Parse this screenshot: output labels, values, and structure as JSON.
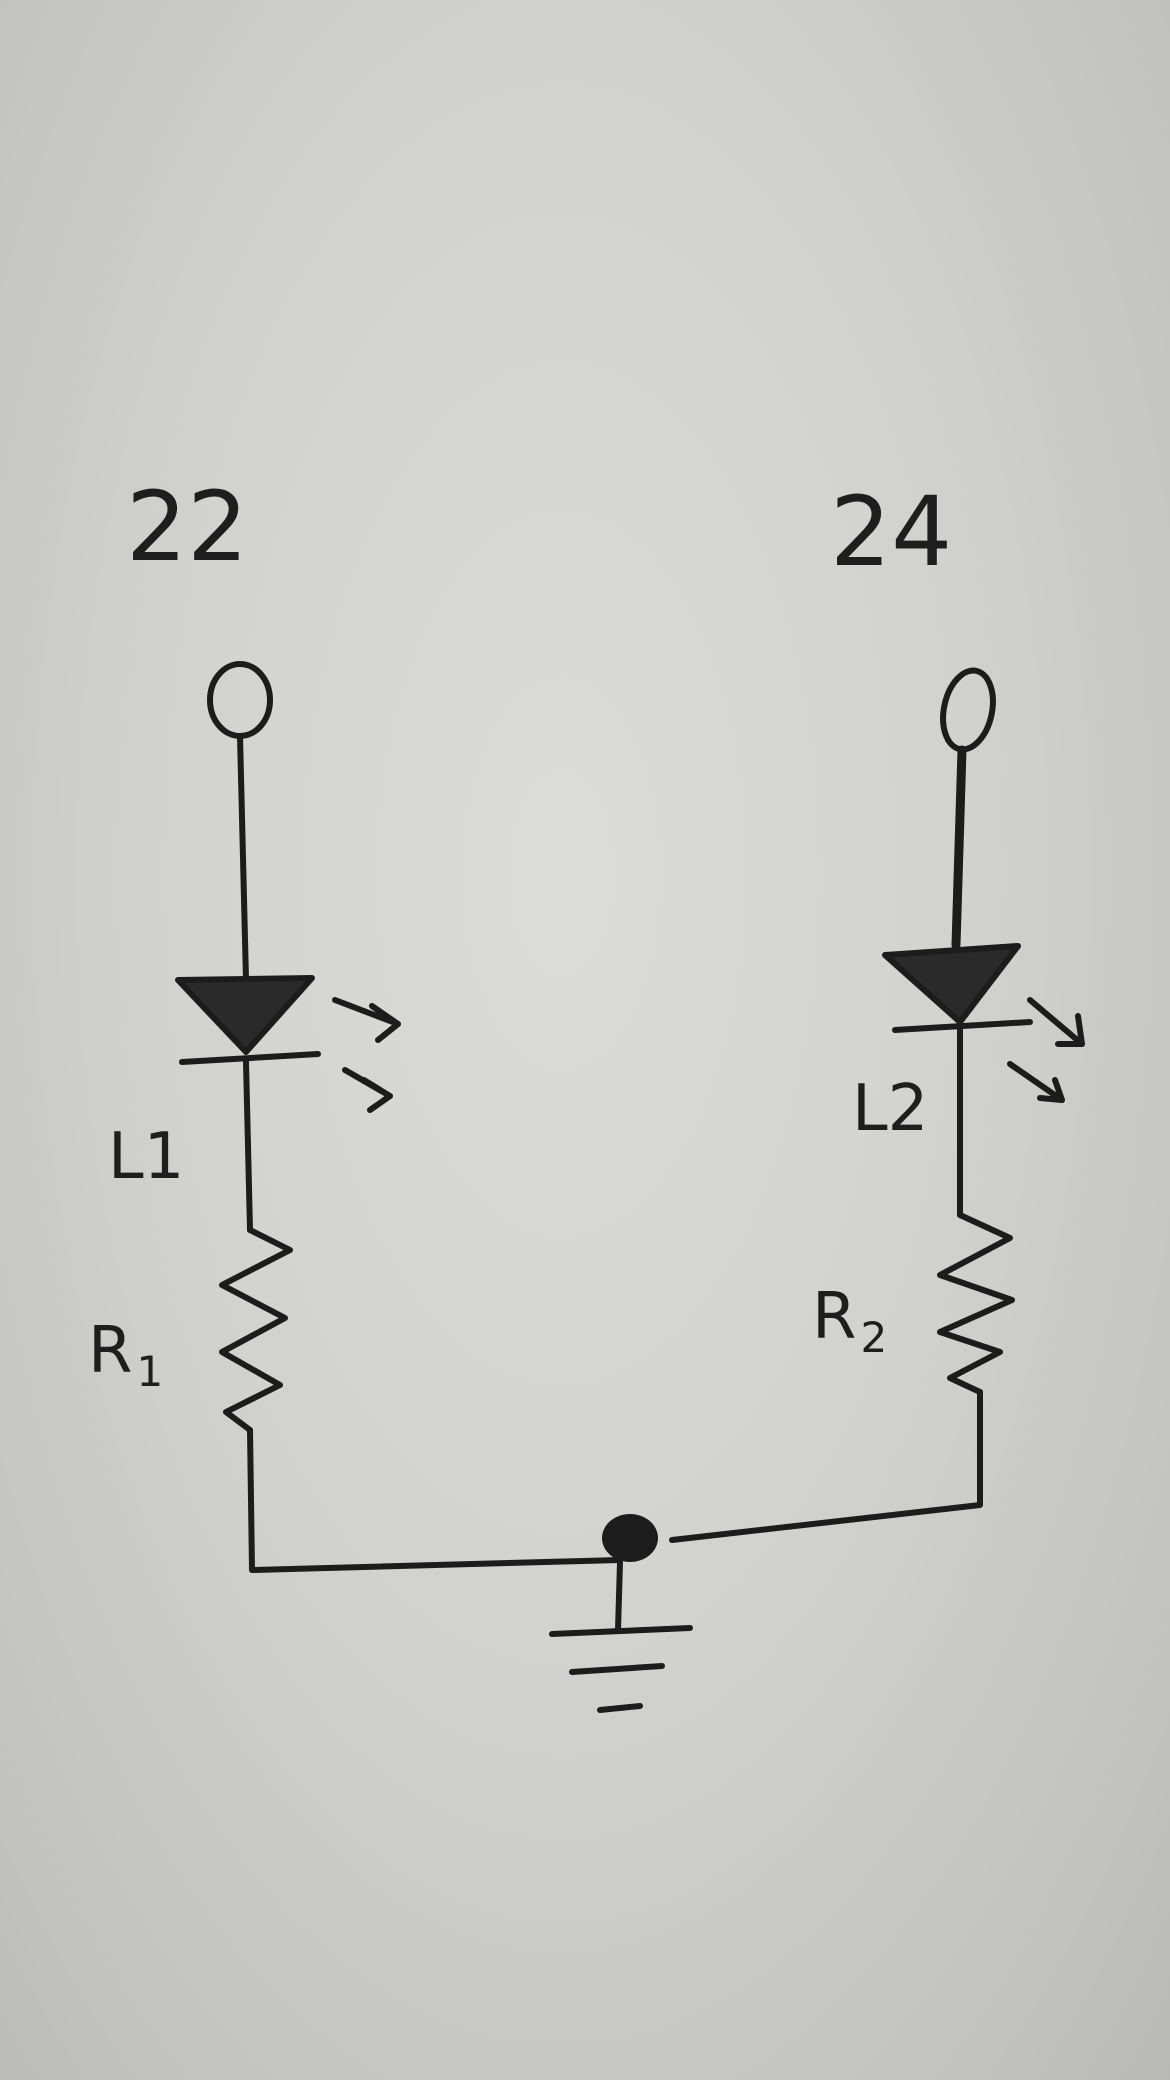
{
  "diagram": {
    "pins": {
      "left": "22",
      "right": "24"
    },
    "components": {
      "led_left": "L1",
      "led_right": "L2",
      "resistor_left": {
        "letter": "R",
        "sub": "1"
      },
      "resistor_right": {
        "letter": "R",
        "sub": "2"
      }
    },
    "ink_color": "#1c1c1c",
    "paper_color": "#d6d6d4"
  }
}
